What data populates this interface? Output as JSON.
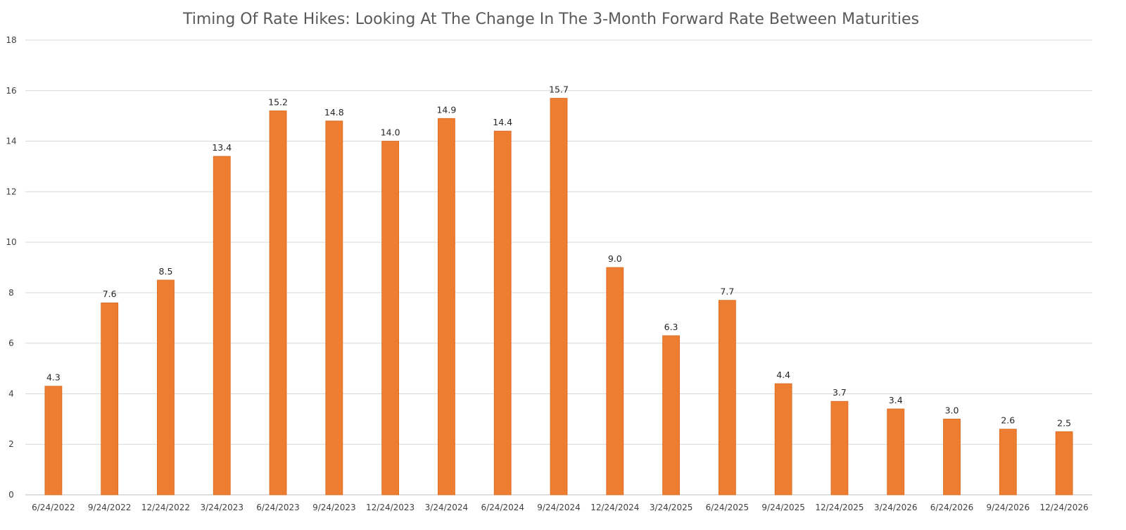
{
  "chart_data": {
    "type": "bar",
    "title": "Timing Of Rate Hikes: Looking At The Change In The 3-Month Forward Rate Between Maturities",
    "xlabel": "",
    "ylabel": "",
    "categories": [
      "6/24/2022",
      "9/24/2022",
      "12/24/2022",
      "3/24/2023",
      "6/24/2023",
      "9/24/2023",
      "12/24/2023",
      "3/24/2024",
      "6/24/2024",
      "9/24/2024",
      "12/24/2024",
      "3/24/2025",
      "6/24/2025",
      "9/24/2025",
      "12/24/2025",
      "3/24/2026",
      "6/24/2026",
      "9/24/2026",
      "12/24/2026"
    ],
    "values": [
      4.3,
      7.6,
      8.5,
      13.4,
      15.2,
      14.8,
      14.0,
      14.9,
      14.4,
      15.7,
      9.0,
      6.3,
      7.7,
      4.4,
      3.7,
      3.4,
      3.0,
      2.6,
      2.5
    ],
    "value_labels": [
      "4.3",
      "7.6",
      "8.5",
      "13.4",
      "15.2",
      "14.8",
      "14.0",
      "14.9",
      "14.4",
      "15.7",
      "9.0",
      "6.3",
      "7.7",
      "4.4",
      "3.7",
      "3.4",
      "3.0",
      "2.6",
      "2.5"
    ],
    "ylim": [
      0,
      18
    ],
    "yticks": [
      0,
      2,
      4,
      6,
      8,
      10,
      12,
      14,
      16,
      18
    ],
    "grid": true,
    "legend": "none",
    "bar_color": "#ED7D31"
  }
}
